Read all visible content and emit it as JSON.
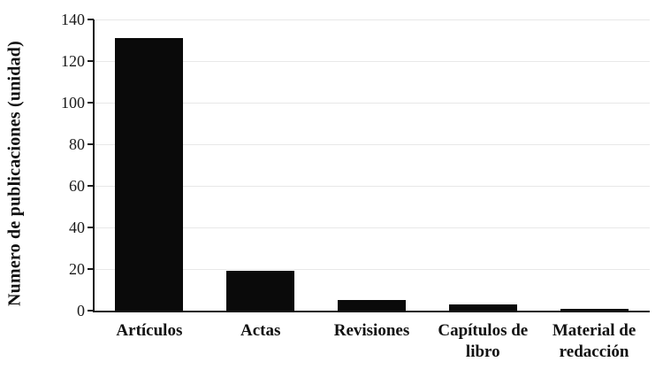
{
  "chart_data": {
    "type": "bar",
    "title": "",
    "xlabel": "",
    "ylabel": "Numero de publicaciones (unidad)",
    "categories": [
      "Artículos",
      "Actas",
      "Revisiones",
      "Capítulos de libro",
      "Material de redacción"
    ],
    "values": [
      131,
      19,
      5,
      3,
      1
    ],
    "ylim": [
      0,
      140
    ],
    "yticks": [
      0,
      20,
      40,
      60,
      80,
      100,
      120,
      140
    ],
    "grid": true,
    "legend": false,
    "colors": {
      "bar": "#0a0a0a",
      "axis": "#1a1a1a",
      "gridline": "#e8e8e8",
      "background": "#ffffff"
    }
  }
}
